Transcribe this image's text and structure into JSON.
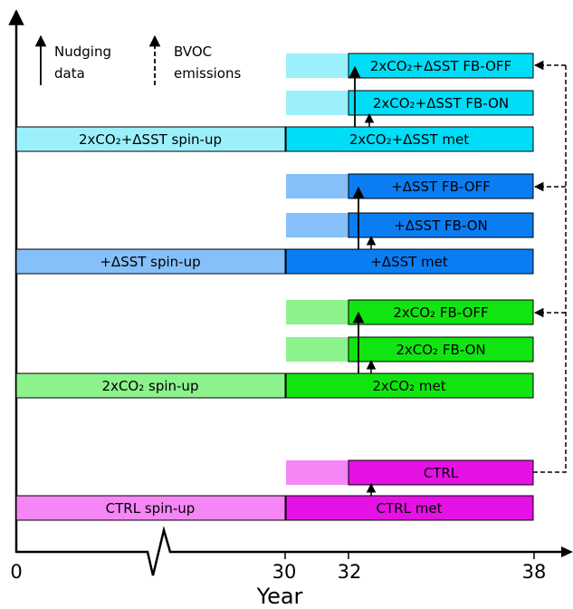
{
  "legend": {
    "nudging_line1": "Nudging",
    "nudging_line2": "data",
    "bvoc_line1": "BVOC",
    "bvoc_line2": "emissions"
  },
  "axis": {
    "xlabel": "Year",
    "ticks": [
      "0",
      "30",
      "32",
      "38"
    ]
  },
  "groups": [
    {
      "id": "2xco2-dsst",
      "spinup": "2xCO₂+ΔSST spin-up",
      "met": "2xCO₂+ΔSST met",
      "fb_on": "2xCO₂+ΔSST FB-ON",
      "fb_off": "2xCO₂+ΔSST FB-OFF",
      "light": "#9cf0fb",
      "dark": "#00ddf7"
    },
    {
      "id": "dsst",
      "spinup": "+ΔSST spin-up",
      "met": "+ΔSST met",
      "fb_on": "+ΔSST FB-ON",
      "fb_off": "+ΔSST FB-OFF",
      "light": "#86c0fa",
      "dark": "#0a7df3"
    },
    {
      "id": "2xco2",
      "spinup": "2xCO₂ spin-up",
      "met": "2xCO₂ met",
      "fb_on": "2xCO₂ FB-ON",
      "fb_off": "2xCO₂ FB-OFF",
      "light": "#8cf28c",
      "dark": "#11e511"
    },
    {
      "id": "ctrl",
      "spinup": "CTRL spin-up",
      "met": "CTRL met",
      "ctrl": "CTRL",
      "light": "#f586f5",
      "dark": "#e511e5"
    }
  ]
}
